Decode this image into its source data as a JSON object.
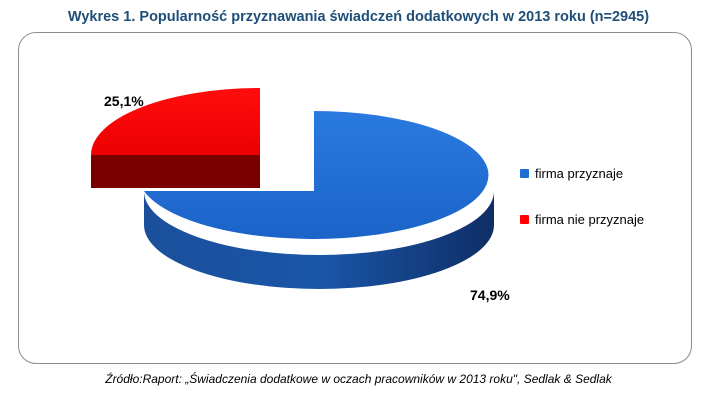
{
  "title": "Wykres 1. Popularność przyznawania świadczeń dodatkowych w 2013 roku (n=2945)",
  "source": "Źródło:Raport: „Świadczenia dodatkowe w oczach pracowników w 2013 roku\", Sedlak & Sedlak",
  "chart_data": {
    "type": "pie",
    "title": "Wykres 1. Popularność przyznawania świadczeń dodatkowych w 2013 roku (n=2945)",
    "style": "3d-exploded",
    "legend_position": "right",
    "slices": [
      {
        "name": "firma przyznaje",
        "value": 74.9,
        "label": "74,9%",
        "color": "#1f6dd1"
      },
      {
        "name": "firma nie przyznaje",
        "value": 25.1,
        "label": "25,1%",
        "color": "#ff0000"
      }
    ]
  }
}
